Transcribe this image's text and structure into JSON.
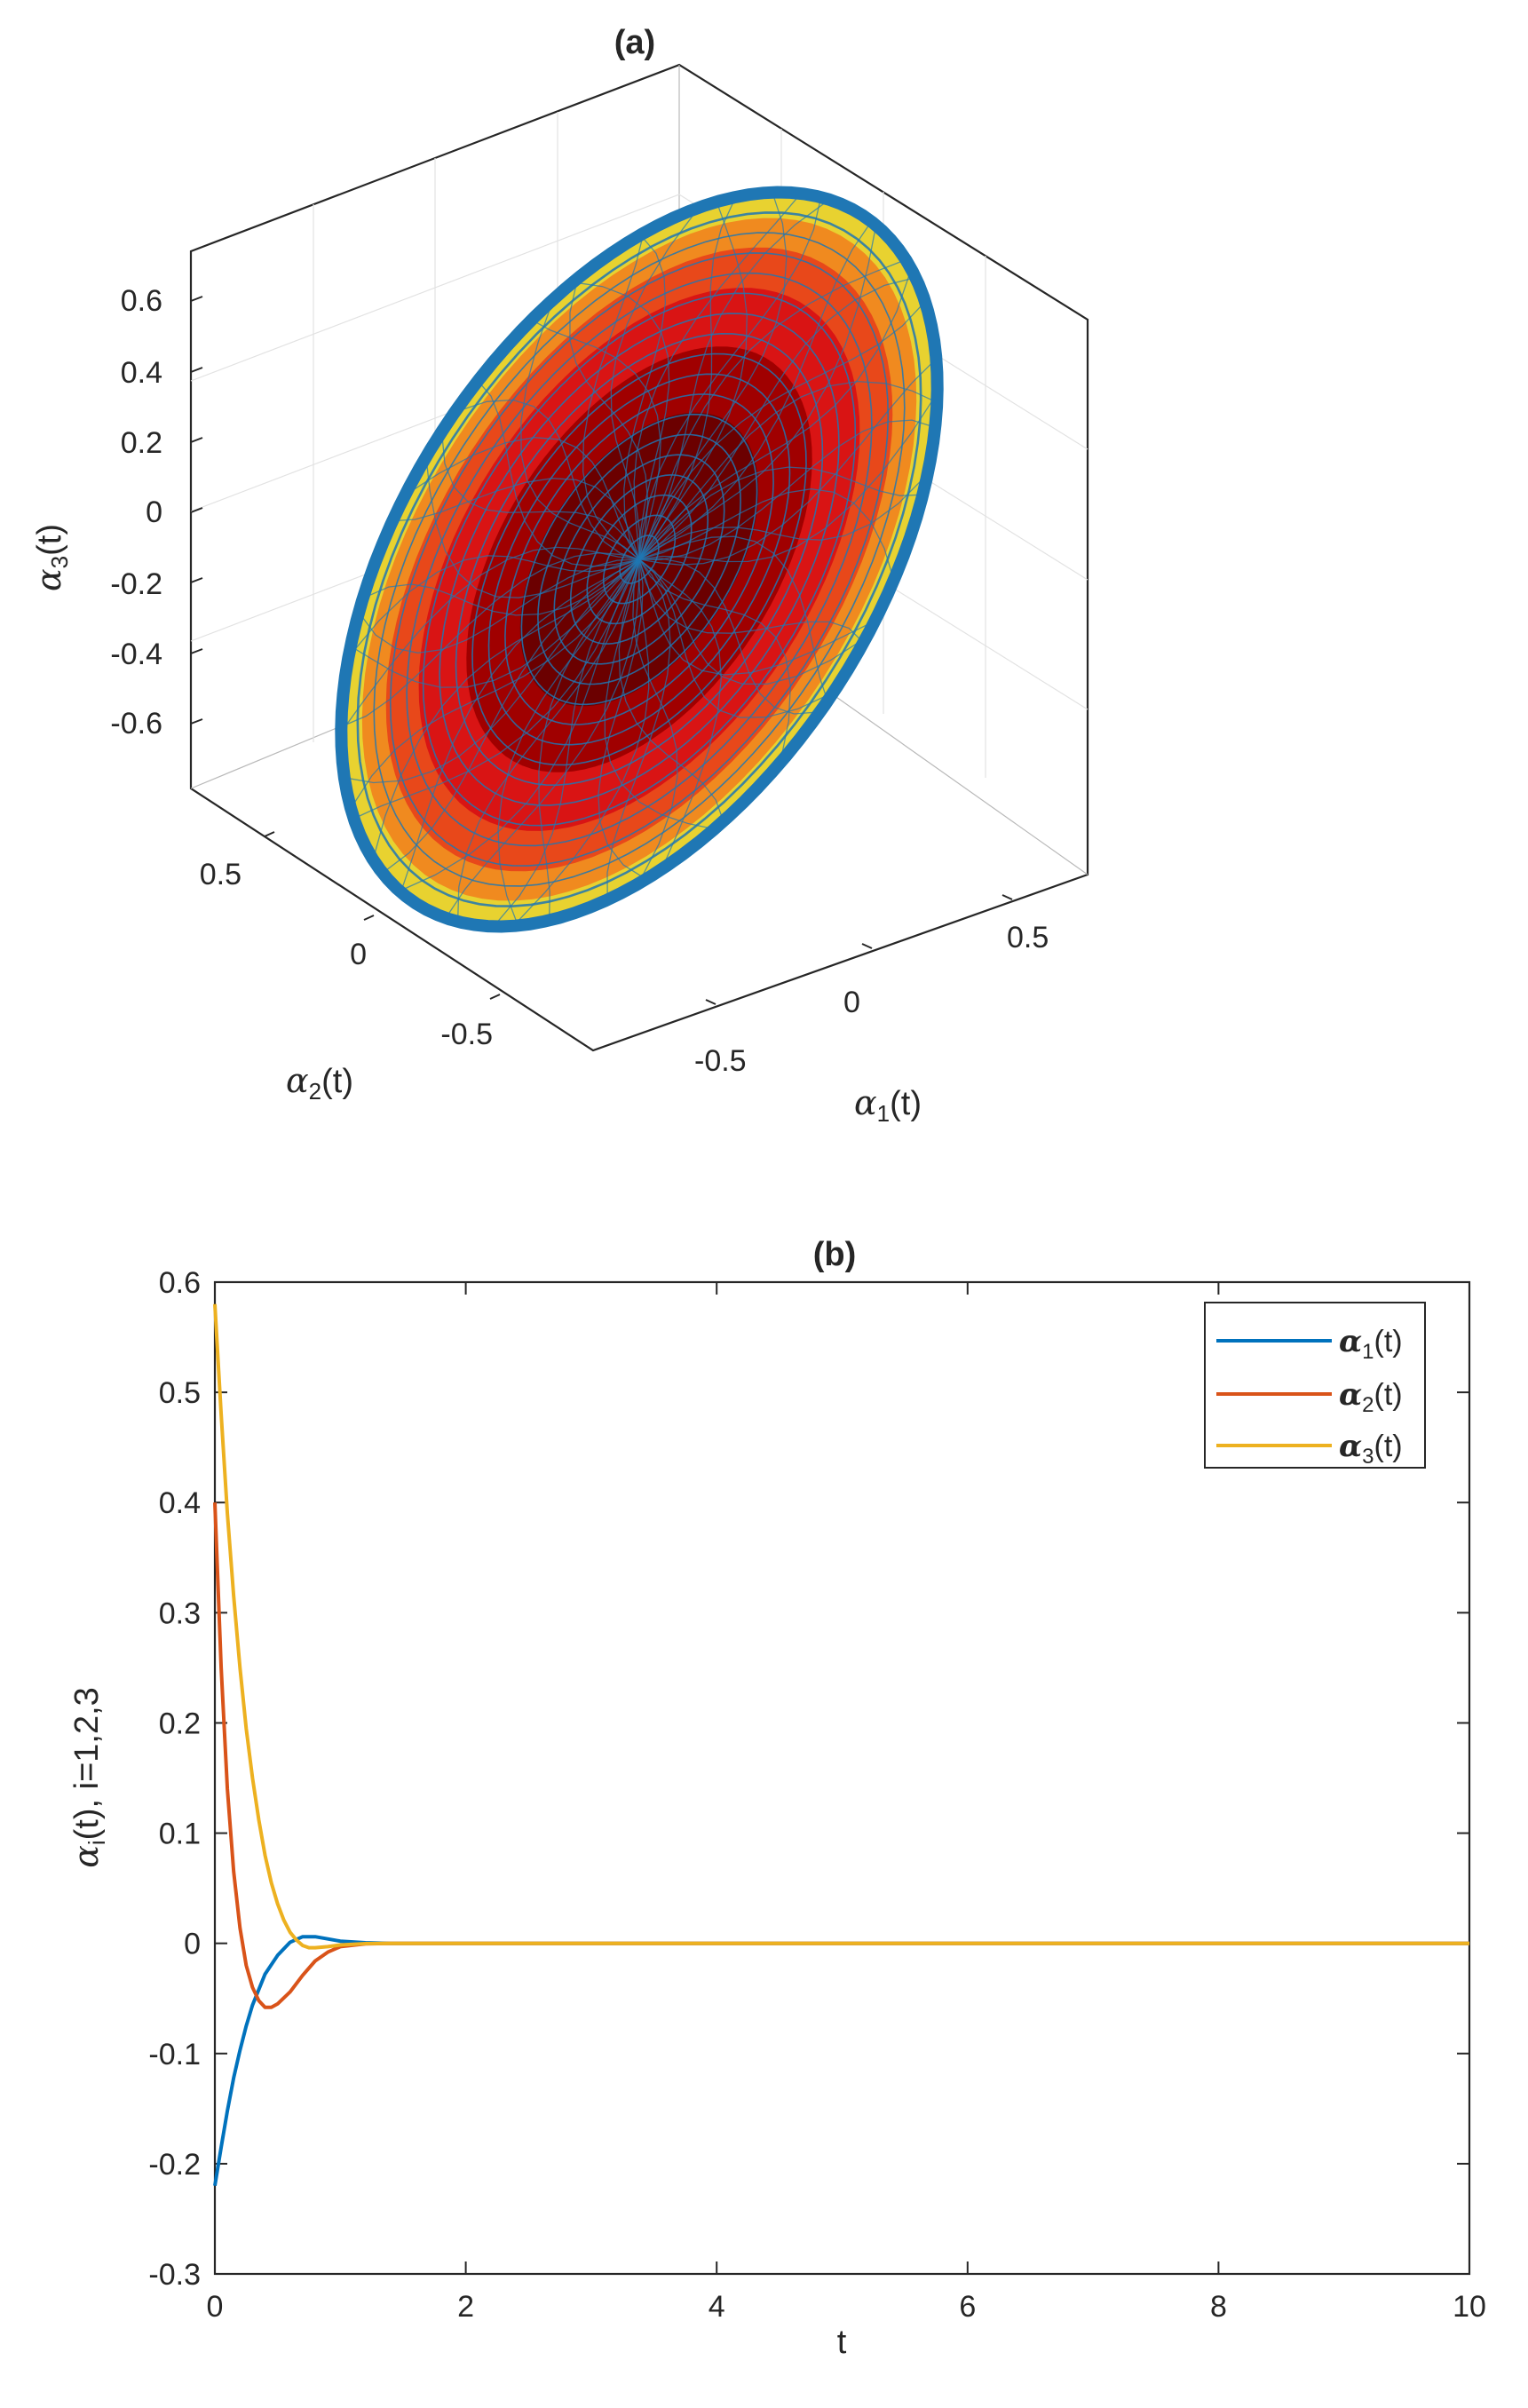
{
  "chart_data": [
    {
      "type": "surface3d",
      "title": "(a)",
      "xlabel": {
        "sym": "α",
        "sub": "1",
        "tail": "(t)"
      },
      "ylabel": {
        "sym": "α",
        "sub": "2",
        "tail": "(t)"
      },
      "zlabel": {
        "sym": "α",
        "sub": "3",
        "tail": "(t)"
      },
      "xlim": [
        -0.75,
        0.75
      ],
      "ylim": [
        -0.75,
        0.75
      ],
      "zlim": [
        -0.75,
        0.75
      ],
      "xticks": [
        "-0.5",
        "0",
        "0.5"
      ],
      "yticks": [
        "0.5",
        "0",
        "-0.5"
      ],
      "zticks": [
        "0.6",
        "0.4",
        "0.2",
        "0",
        "-0.2",
        "-0.4",
        "-0.6"
      ],
      "surface": "ellipsoid",
      "colors": {
        "edge": "#1f77b4",
        "fill": [
          "#6b0000",
          "#a00000",
          "#d91414",
          "#e8481a",
          "#f08a1f",
          "#e8d230"
        ]
      },
      "grid": true
    },
    {
      "type": "line",
      "title": "(b)",
      "xlabel": "t",
      "ylabel": "α_i(t), i=1,2,3",
      "ylabel_parts": {
        "sym": "α",
        "sub": "i",
        "tail": "(t), i=1,2,3"
      },
      "xlim": [
        0,
        10
      ],
      "ylim": [
        -0.3,
        0.6
      ],
      "xticks": [
        "0",
        "2",
        "4",
        "6",
        "8",
        "10"
      ],
      "yticks": [
        "0.6",
        "0.5",
        "0.4",
        "0.3",
        "0.2",
        "0.1",
        "0",
        "-0.1",
        "-0.2",
        "-0.3"
      ],
      "legend_position": "top-right",
      "grid": false,
      "series": [
        {
          "name": "α1(t)",
          "legend": {
            "sym": "α",
            "sub": "1",
            "tail": "(t)"
          },
          "color": "#0072bd",
          "x": [
            0,
            0.05,
            0.1,
            0.15,
            0.2,
            0.25,
            0.3,
            0.4,
            0.5,
            0.6,
            0.7,
            0.8,
            0.9,
            1.0,
            1.2,
            1.4,
            2,
            4,
            6,
            8,
            10
          ],
          "y": [
            -0.22,
            -0.185,
            -0.152,
            -0.122,
            -0.097,
            -0.075,
            -0.056,
            -0.028,
            -0.011,
            0.001,
            0.006,
            0.006,
            0.004,
            0.002,
            0.0005,
            0,
            0,
            0,
            0,
            0,
            0
          ]
        },
        {
          "name": "α2(t)",
          "legend": {
            "sym": "α",
            "sub": "2",
            "tail": "(t)"
          },
          "color": "#d95319",
          "x": [
            0,
            0.05,
            0.1,
            0.15,
            0.2,
            0.25,
            0.3,
            0.35,
            0.4,
            0.45,
            0.5,
            0.6,
            0.7,
            0.8,
            0.9,
            1.0,
            1.2,
            1.4,
            2,
            4,
            6,
            8,
            10
          ],
          "y": [
            0.4,
            0.25,
            0.14,
            0.065,
            0.014,
            -0.02,
            -0.04,
            -0.052,
            -0.058,
            -0.058,
            -0.055,
            -0.044,
            -0.029,
            -0.016,
            -0.008,
            -0.003,
            -0.0005,
            0,
            0,
            0,
            0,
            0,
            0
          ]
        },
        {
          "name": "α3(t)",
          "legend": {
            "sym": "α",
            "sub": "3",
            "tail": "(t)"
          },
          "color": "#edb120",
          "x": [
            0,
            0.05,
            0.1,
            0.15,
            0.2,
            0.25,
            0.3,
            0.35,
            0.4,
            0.45,
            0.5,
            0.55,
            0.6,
            0.65,
            0.7,
            0.75,
            0.8,
            0.9,
            1.0,
            1.2,
            1.4,
            2,
            4,
            6,
            8,
            10
          ],
          "y": [
            0.58,
            0.48,
            0.39,
            0.315,
            0.25,
            0.195,
            0.15,
            0.112,
            0.08,
            0.055,
            0.036,
            0.021,
            0.01,
            0.003,
            -0.002,
            -0.004,
            -0.004,
            -0.003,
            -0.0015,
            -0.0003,
            0,
            0,
            0,
            0,
            0,
            0
          ]
        }
      ]
    }
  ]
}
